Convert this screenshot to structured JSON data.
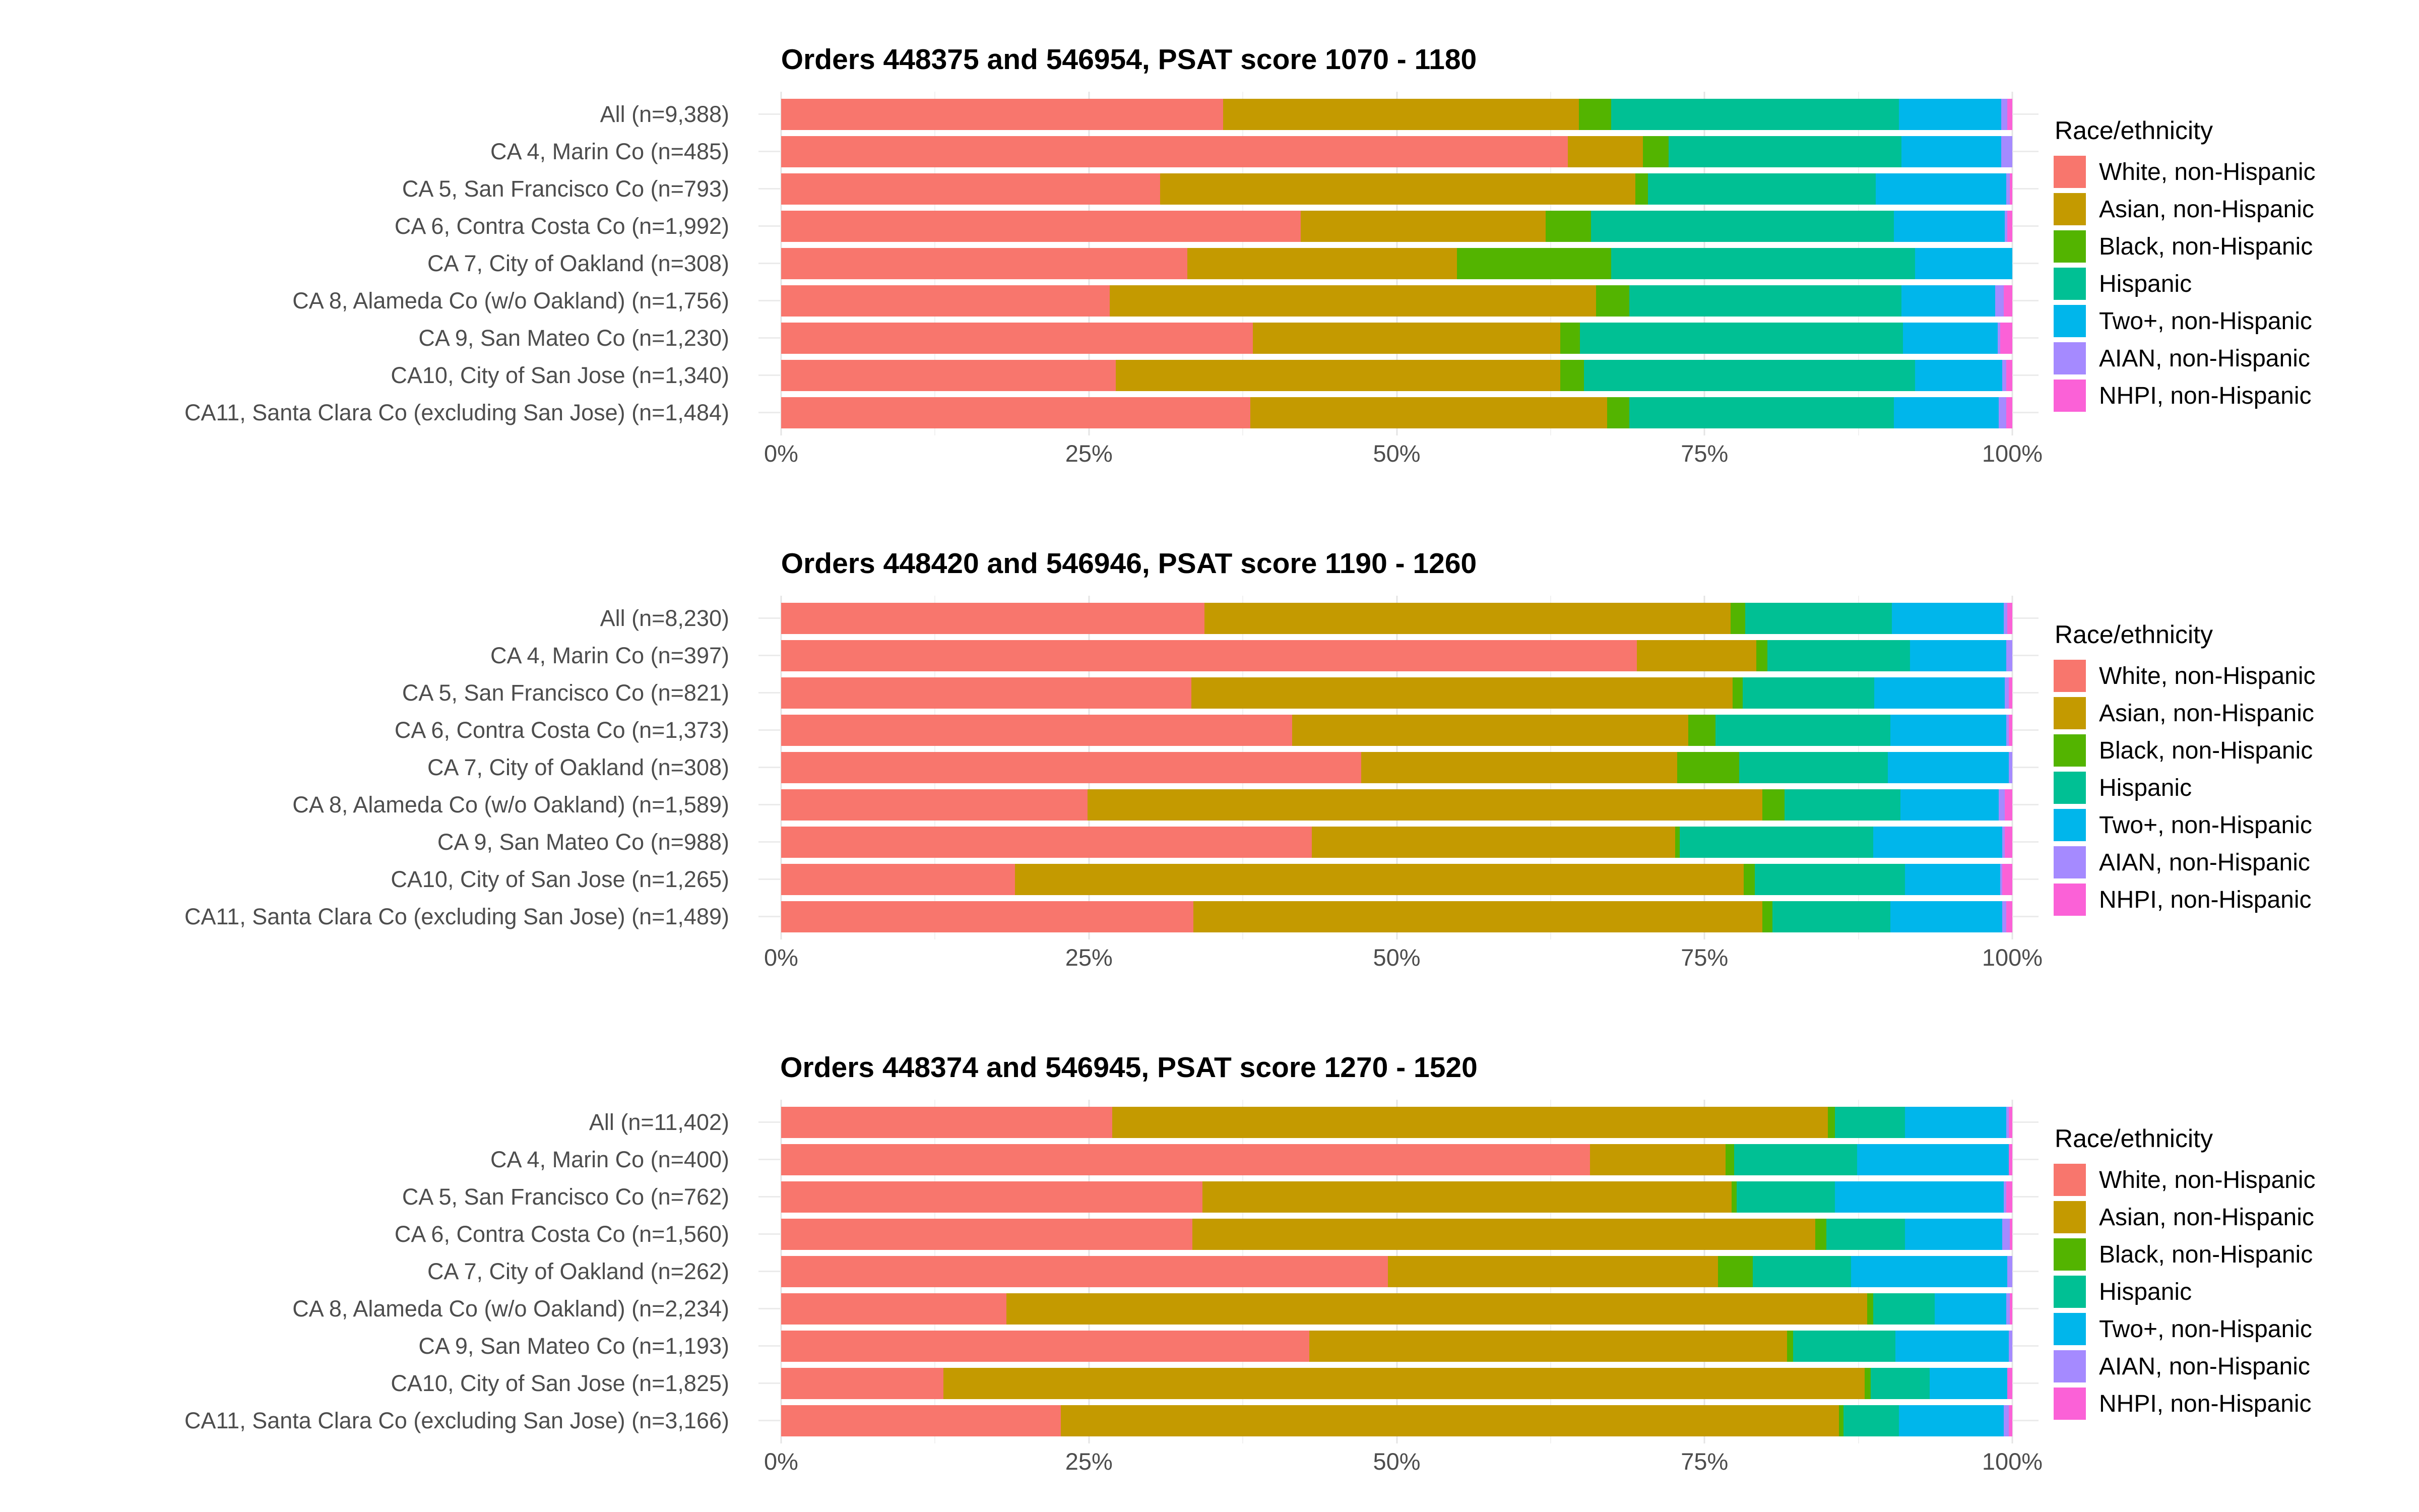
{
  "page_background": "#ffffff",
  "legend_title": "Race/ethnicity",
  "axis_ticks": [
    "0%",
    "25%",
    "50%",
    "75%",
    "100%"
  ],
  "chart_data": {
    "type": "bar",
    "variant": "horizontal-stacked-100percent",
    "unit": "percent",
    "xlim": [
      0,
      100
    ],
    "x_tick_labels": [
      "0%",
      "25%",
      "50%",
      "75%",
      "100%"
    ],
    "grid": "on",
    "legend_position": "right",
    "legend_title": "Race/ethnicity",
    "series_names": [
      "White, non-Hispanic",
      "Asian, non-Hispanic",
      "Black, non-Hispanic",
      "Hispanic",
      "Two+, non-Hispanic",
      "AIAN, non-Hispanic",
      "NHPI, non-Hispanic"
    ],
    "series_colors": [
      "#F8766D",
      "#C49A00",
      "#53B400",
      "#00C094",
      "#00B6EB",
      "#A58AFF",
      "#FB61D7"
    ],
    "charts": [
      {
        "title": "Orders 448375 and 546954, PSAT score 1070 - 1180",
        "categories": [
          "All (n=9,388)",
          "CA 4, Marin Co (n=485)",
          "CA 5, San Francisco Co (n=793)",
          "CA 6, Contra Costa Co (n=1,992)",
          "CA 7, City of Oakland (n=308)",
          "CA 8, Alameda Co (w/o Oakland) (n=1,756)",
          "CA 9, San Mateo Co (n=1,230)",
          "CA10, City of San Jose (n=1,340)",
          "CA11, Santa Clara Co (excluding San Jose) (n=1,484)"
        ],
        "series": [
          {
            "name": "White, non-Hispanic",
            "values": [
              35.9,
              63.9,
              30.8,
              42.2,
              33.0,
              26.7,
              38.3,
              27.2,
              38.1
            ]
          },
          {
            "name": "Asian, non-Hispanic",
            "values": [
              28.9,
              6.1,
              38.6,
              19.9,
              21.9,
              39.5,
              25.0,
              36.1,
              29.0
            ]
          },
          {
            "name": "Black, non-Hispanic",
            "values": [
              2.6,
              2.1,
              1.0,
              3.7,
              12.5,
              2.7,
              1.6,
              1.9,
              1.8
            ]
          },
          {
            "name": "Hispanic",
            "values": [
              23.4,
              18.9,
              18.5,
              24.6,
              24.7,
              22.1,
              26.2,
              26.9,
              21.5
            ]
          },
          {
            "name": "Two+, non-Hispanic",
            "values": [
              8.3,
              8.1,
              10.6,
              9.0,
              7.9,
              7.6,
              7.7,
              7.1,
              8.5
            ]
          },
          {
            "name": "AIAN, non-Hispanic",
            "values": [
              0.5,
              0.9,
              0.3,
              0.2,
              0.0,
              0.7,
              0.2,
              0.3,
              0.6
            ]
          },
          {
            "name": "NHPI, non-Hispanic",
            "values": [
              0.4,
              0.0,
              0.2,
              0.4,
              0.0,
              0.7,
              1.0,
              0.5,
              0.5
            ]
          }
        ]
      },
      {
        "title": "Orders 448420 and 546946, PSAT score 1190 - 1260",
        "categories": [
          "All (n=8,230)",
          "CA 4, Marin Co (n=397)",
          "CA 5, San Francisco Co (n=821)",
          "CA 6, Contra Costa Co (n=1,373)",
          "CA 7, City of Oakland (n=308)",
          "CA 8, Alameda Co (w/o Oakland) (n=1,589)",
          "CA 9, San Mateo Co (n=988)",
          "CA10, City of San Jose (n=1,265)",
          "CA11, Santa Clara Co (excluding San Jose) (n=1,489)"
        ],
        "series": [
          {
            "name": "White, non-Hispanic",
            "values": [
              34.4,
              69.5,
              33.3,
              41.5,
              47.1,
              24.9,
              43.1,
              19.0,
              33.5
            ]
          },
          {
            "name": "Asian, non-Hispanic",
            "values": [
              42.7,
              9.7,
              44.0,
              32.2,
              25.7,
              54.8,
              29.5,
              59.2,
              46.2
            ]
          },
          {
            "name": "Black, non-Hispanic",
            "values": [
              1.2,
              0.9,
              0.8,
              2.2,
              5.0,
              1.8,
              0.4,
              0.9,
              0.8
            ]
          },
          {
            "name": "Hispanic",
            "values": [
              11.9,
              11.6,
              10.7,
              14.2,
              12.1,
              9.4,
              15.7,
              12.2,
              9.6
            ]
          },
          {
            "name": "Two+, non-Hispanic",
            "values": [
              9.1,
              7.8,
              10.6,
              9.4,
              9.8,
              8.0,
              10.5,
              7.7,
              9.1
            ]
          },
          {
            "name": "AIAN, non-Hispanic",
            "values": [
              0.3,
              0.5,
              0.3,
              0.2,
              0.3,
              0.5,
              0.2,
              0.2,
              0.3
            ]
          },
          {
            "name": "NHPI, non-Hispanic",
            "values": [
              0.4,
              0.0,
              0.3,
              0.3,
              0.0,
              0.6,
              0.6,
              0.8,
              0.5
            ]
          }
        ]
      },
      {
        "title": "Orders 448374 and 546945, PSAT score 1270 - 1520",
        "categories": [
          "All (n=11,402)",
          "CA 4, Marin Co (n=400)",
          "CA 5, San Francisco Co (n=762)",
          "CA 6, Contra Costa Co (n=1,560)",
          "CA 7, City of Oakland (n=262)",
          "CA 8, Alameda Co (w/o Oakland) (n=2,234)",
          "CA 9, San Mateo Co (n=1,193)",
          "CA10, City of San Jose (n=1,825)",
          "CA11, Santa Clara Co (excluding San Jose) (n=3,166)"
        ],
        "series": [
          {
            "name": "White, non-Hispanic",
            "values": [
              26.9,
              65.7,
              34.2,
              33.4,
              49.3,
              18.3,
              42.9,
              13.2,
              22.7
            ]
          },
          {
            "name": "Asian, non-Hispanic",
            "values": [
              58.1,
              11.0,
              43.0,
              50.6,
              26.8,
              69.9,
              38.8,
              74.8,
              63.2
            ]
          },
          {
            "name": "Black, non-Hispanic",
            "values": [
              0.6,
              0.7,
              0.4,
              0.9,
              2.8,
              0.5,
              0.5,
              0.5,
              0.4
            ]
          },
          {
            "name": "Hispanic",
            "values": [
              5.7,
              10.0,
              8.0,
              6.4,
              8.0,
              5.0,
              8.3,
              4.8,
              4.5
            ]
          },
          {
            "name": "Two+, non-Hispanic",
            "values": [
              8.2,
              12.3,
              13.7,
              7.9,
              12.7,
              5.8,
              9.2,
              6.3,
              8.5
            ]
          },
          {
            "name": "AIAN, non-Hispanic",
            "values": [
              0.2,
              0.0,
              0.2,
              0.6,
              0.4,
              0.3,
              0.3,
              0.0,
              0.4
            ]
          },
          {
            "name": "NHPI, non-Hispanic",
            "values": [
              0.3,
              0.3,
              0.5,
              0.2,
              0.0,
              0.2,
              0.0,
              0.4,
              0.3
            ]
          }
        ]
      }
    ]
  }
}
